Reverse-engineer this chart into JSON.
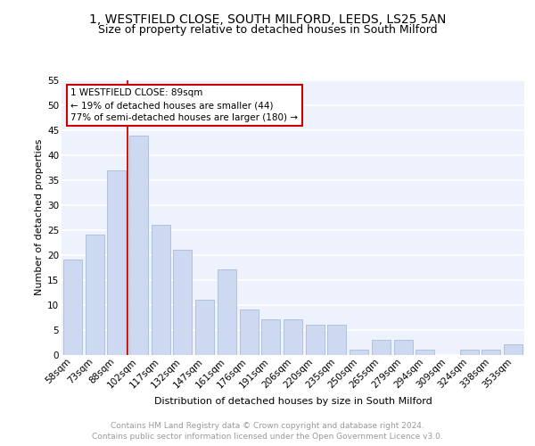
{
  "title1": "1, WESTFIELD CLOSE, SOUTH MILFORD, LEEDS, LS25 5AN",
  "title2": "Size of property relative to detached houses in South Milford",
  "xlabel": "Distribution of detached houses by size in South Milford",
  "ylabel": "Number of detached properties",
  "categories": [
    "58sqm",
    "73sqm",
    "88sqm",
    "102sqm",
    "117sqm",
    "132sqm",
    "147sqm",
    "161sqm",
    "176sqm",
    "191sqm",
    "206sqm",
    "220sqm",
    "235sqm",
    "250sqm",
    "265sqm",
    "279sqm",
    "294sqm",
    "309sqm",
    "324sqm",
    "338sqm",
    "353sqm"
  ],
  "values": [
    19,
    24,
    37,
    44,
    26,
    21,
    11,
    17,
    9,
    7,
    7,
    6,
    6,
    1,
    3,
    3,
    1,
    0,
    1,
    1,
    2
  ],
  "bar_color": "#ccd9f0",
  "bar_edge_color": "#a8bcd8",
  "vline_x_index": 2,
  "vline_color": "#cc0000",
  "annotation_text": "1 WESTFIELD CLOSE: 89sqm\n← 19% of detached houses are smaller (44)\n77% of semi-detached houses are larger (180) →",
  "annotation_box_color": "#cc0000",
  "ylim": [
    0,
    55
  ],
  "yticks": [
    0,
    5,
    10,
    15,
    20,
    25,
    30,
    35,
    40,
    45,
    50,
    55
  ],
  "footer_text": "Contains HM Land Registry data © Crown copyright and database right 2024.\nContains public sector information licensed under the Open Government Licence v3.0.",
  "bg_color": "#eef2fc",
  "grid_color": "#ffffff",
  "title1_fontsize": 10,
  "title2_fontsize": 9,
  "axis_label_fontsize": 8,
  "tick_fontsize": 7.5,
  "footer_fontsize": 6.5
}
